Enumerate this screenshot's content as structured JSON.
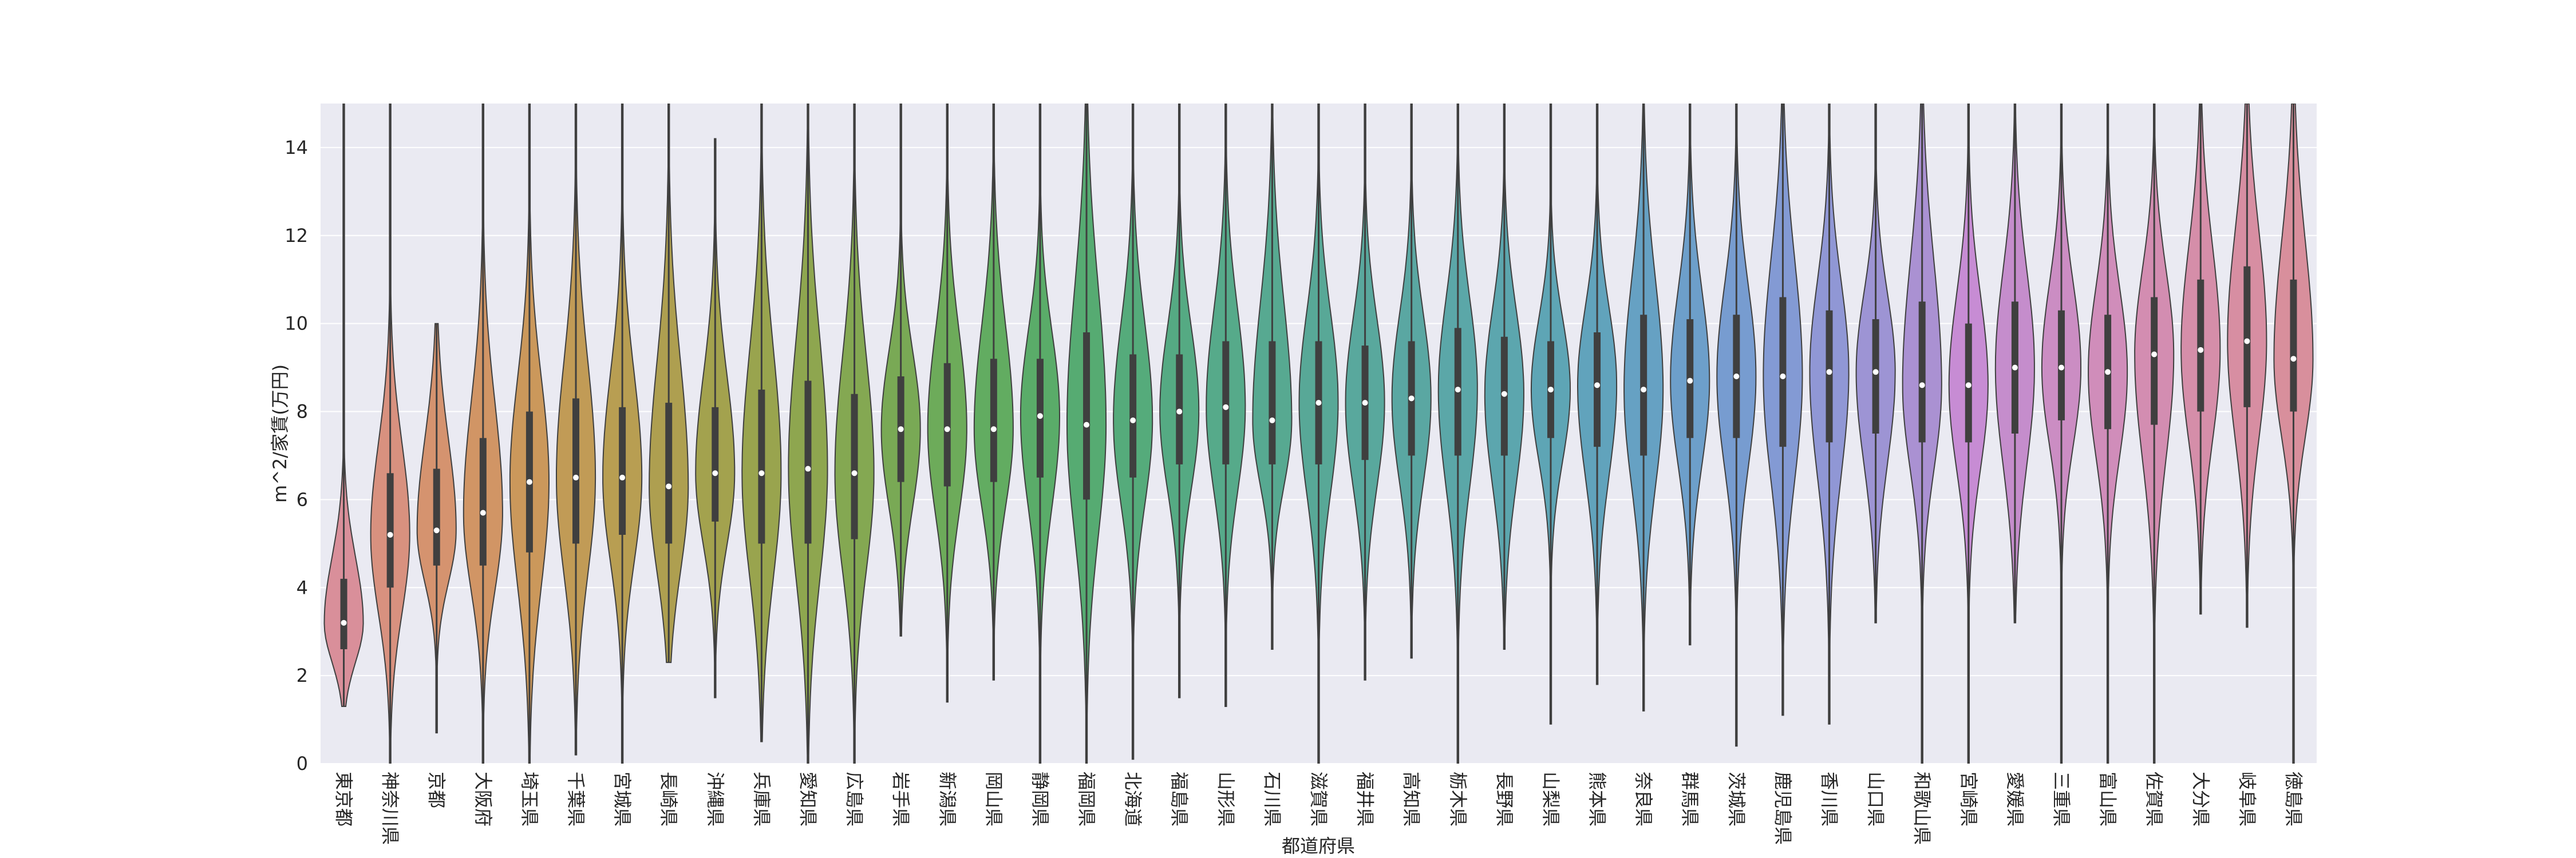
{
  "chart_data": {
    "type": "violin",
    "xlabel": "都道府県",
    "ylabel": "m^2/家賃(万円)",
    "categories": [
      "東京都",
      "神奈川県",
      "京都",
      "大阪府",
      "埼玉県",
      "千葉県",
      "宮城県",
      "長崎県",
      "沖縄県",
      "兵庫県",
      "愛知県",
      "広島県",
      "岩手県",
      "新潟県",
      "岡山県",
      "静岡県",
      "福岡県",
      "北海道",
      "福島県",
      "山形県",
      "石川県",
      "滋賀県",
      "福井県",
      "高知県",
      "栃木県",
      "長野県",
      "山梨県",
      "熊本県",
      "奈良県",
      "群馬県",
      "茨城県",
      "鹿児島県",
      "香川県",
      "山口県",
      "和歌山県",
      "宮崎県",
      "愛媛県",
      "三重県",
      "富山県",
      "佐賀県",
      "大分県",
      "岐阜県",
      "徳島県"
    ],
    "min": [
      1.3,
      0,
      0.7,
      0,
      0,
      0.2,
      0,
      2.3,
      1.5,
      0.5,
      0,
      0,
      2.9,
      1.4,
      1.9,
      0,
      0,
      0.1,
      1.5,
      1.3,
      2.6,
      0,
      1.9,
      2.4,
      0,
      2.6,
      0.9,
      1.8,
      1.2,
      2.7,
      0.4,
      1.1,
      0.9,
      3.2,
      0,
      0,
      3.2,
      0,
      0,
      0,
      3.4,
      3.1,
      0
    ],
    "q1": [
      2.6,
      4.0,
      4.5,
      4.5,
      4.8,
      5.0,
      5.2,
      5.0,
      5.5,
      5.0,
      5.0,
      5.1,
      6.4,
      6.3,
      6.4,
      6.5,
      6.0,
      6.5,
      6.8,
      6.8,
      6.8,
      6.8,
      6.9,
      7.0,
      7.0,
      7.0,
      7.4,
      7.2,
      7.0,
      7.4,
      7.4,
      7.2,
      7.3,
      7.5,
      7.3,
      7.3,
      7.5,
      7.8,
      7.6,
      7.7,
      8.0,
      8.1,
      8.0
    ],
    "median": [
      3.2,
      5.2,
      5.3,
      5.7,
      6.4,
      6.5,
      6.5,
      6.3,
      6.6,
      6.6,
      6.7,
      6.6,
      7.6,
      7.6,
      7.6,
      7.9,
      7.7,
      7.8,
      8.0,
      8.1,
      7.8,
      8.2,
      8.2,
      8.3,
      8.5,
      8.4,
      8.5,
      8.6,
      8.5,
      8.7,
      8.8,
      8.8,
      8.9,
      8.9,
      8.6,
      8.6,
      9.0,
      9.0,
      8.9,
      9.3,
      9.4,
      9.6,
      9.2
    ],
    "q3": [
      4.2,
      6.6,
      6.7,
      7.4,
      8.0,
      8.3,
      8.1,
      8.2,
      8.1,
      8.5,
      8.7,
      8.4,
      8.8,
      9.1,
      9.2,
      9.2,
      9.8,
      9.3,
      9.3,
      9.6,
      9.6,
      9.6,
      9.5,
      9.6,
      9.9,
      9.7,
      9.6,
      9.8,
      10.2,
      10.1,
      10.2,
      10.6,
      10.3,
      10.1,
      10.5,
      10.0,
      10.5,
      10.3,
      10.2,
      10.6,
      11.0,
      11.3,
      11.0
    ],
    "max": [
      15,
      15,
      10,
      15,
      15,
      15,
      15,
      15,
      14.2,
      15,
      15,
      15,
      15,
      15,
      15,
      15,
      15,
      15,
      15,
      15,
      15,
      15,
      15,
      15,
      15,
      15,
      15,
      15,
      15,
      15,
      15,
      15,
      15,
      15,
      15,
      15,
      15,
      15,
      15,
      15,
      15,
      15,
      15
    ],
    "colors": [
      "#d98f9a",
      "#d8917f",
      "#d5936f",
      "#d19565",
      "#cb985b",
      "#c19b56",
      "#b89e52",
      "#ae9f50",
      "#a3a24e",
      "#99a44e",
      "#8ea64f",
      "#84a852",
      "#79a955",
      "#6dab5a",
      "#62ac61",
      "#5aac69",
      "#56ab72",
      "#55ab7b",
      "#55aa83",
      "#56aa8a",
      "#57a991",
      "#58a897",
      "#59a89d",
      "#5aa7a2",
      "#5ba7a8",
      "#5ca6ae",
      "#5ea5b5",
      "#61a3bc",
      "#66a1c3",
      "#6d9fca",
      "#779cd0",
      "#839ad4",
      "#9097d5",
      "#9d94d4",
      "#aa91d2",
      "#c78cd4",
      "#c58dcc",
      "#cb8dc3",
      "#d08dba",
      "#d38db1",
      "#d58ea9",
      "#d78ea2",
      "#d88f9c"
    ],
    "ylim": [
      0,
      15
    ],
    "yticks": [
      0,
      2,
      4,
      6,
      8,
      10,
      12,
      14
    ],
    "grid": true
  }
}
